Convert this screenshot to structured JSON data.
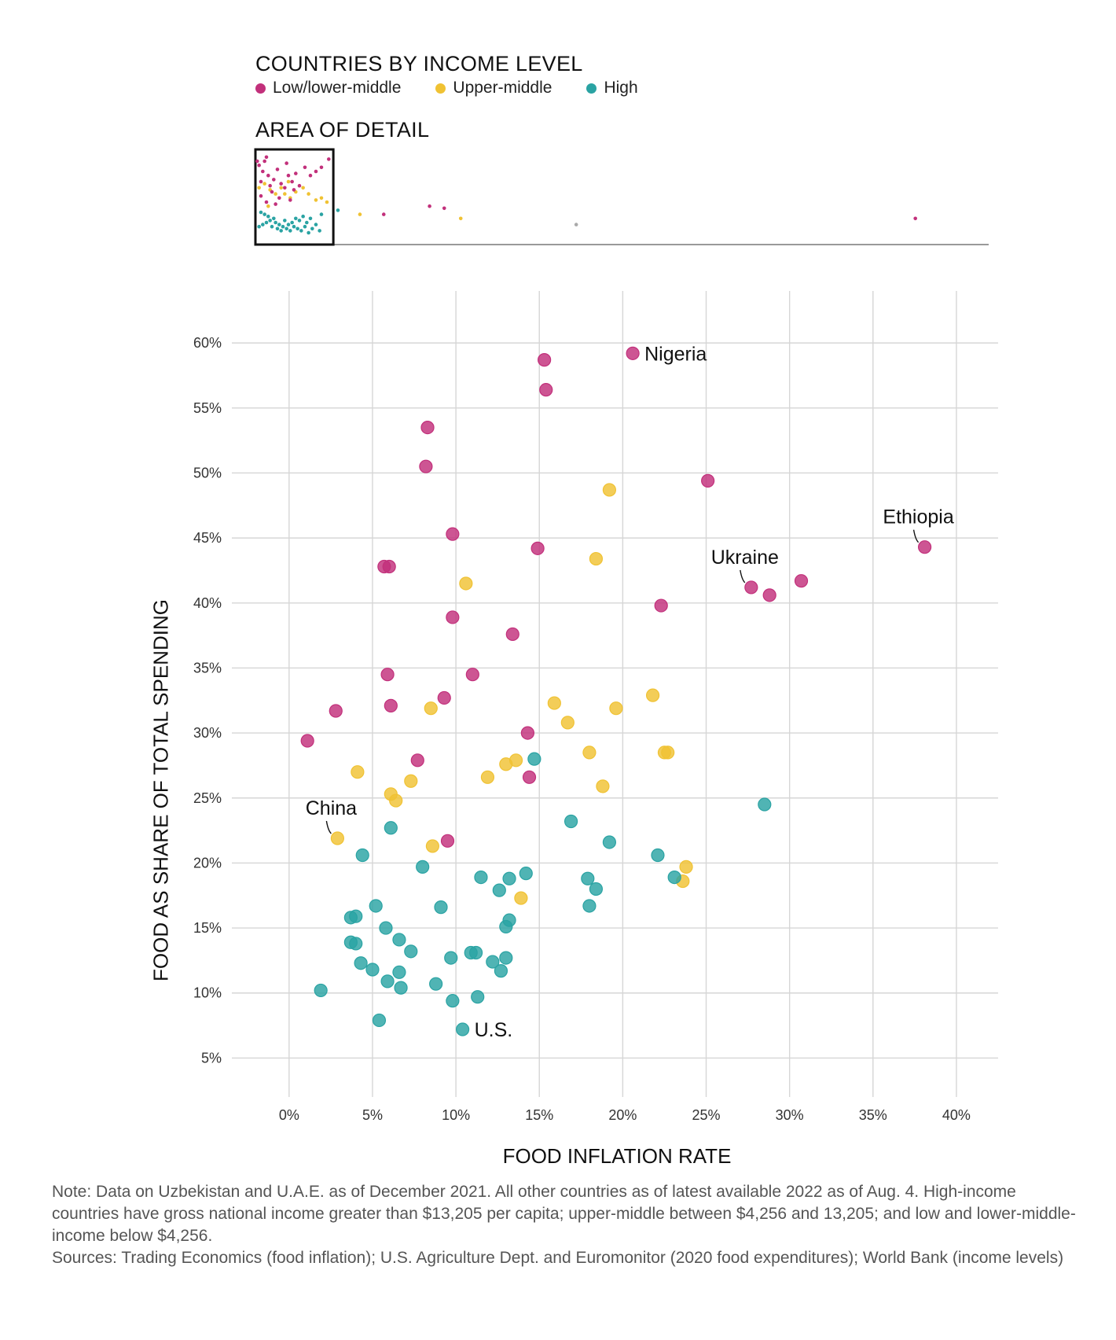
{
  "legend": {
    "title": "COUNTRIES BY INCOME LEVEL",
    "items": [
      {
        "key": "low",
        "label": "Low/lower-middle",
        "color": "#c2307b"
      },
      {
        "key": "upper",
        "label": "Upper-middle",
        "color": "#f0c233"
      },
      {
        "key": "high",
        "label": "High",
        "color": "#2aa3a3"
      }
    ]
  },
  "detail": {
    "title": "AREA OF DETAIL"
  },
  "chart_data": {
    "type": "scatter",
    "xlabel": "FOOD INFLATION RATE",
    "ylabel": "FOOD AS SHARE OF TOTAL SPENDING",
    "xlim": [
      -1.5,
      42.5
    ],
    "ylim": [
      2,
      64
    ],
    "x_ticks": [
      0,
      5,
      10,
      15,
      20,
      25,
      30,
      35,
      40
    ],
    "x_tick_labels": [
      "0%",
      "5%",
      "10%",
      "15%",
      "20%",
      "25%",
      "30%",
      "35%",
      "40%"
    ],
    "y_ticks": [
      5,
      10,
      15,
      20,
      25,
      30,
      35,
      40,
      45,
      50,
      55,
      60
    ],
    "y_tick_labels": [
      "5%",
      "10%",
      "15%",
      "20%",
      "25%",
      "30%",
      "35%",
      "40%",
      "45%",
      "50%",
      "55%",
      "60%"
    ],
    "series": [
      {
        "name": "Low/lower-middle",
        "color": "#c2307b",
        "points": [
          [
            15.3,
            58.7
          ],
          [
            20.6,
            59.2
          ],
          [
            15.4,
            56.4
          ],
          [
            8.3,
            53.5
          ],
          [
            8.2,
            50.5
          ],
          [
            25.1,
            49.4
          ],
          [
            9.8,
            45.3
          ],
          [
            14.9,
            44.2
          ],
          [
            38.1,
            44.3
          ],
          [
            5.7,
            42.8
          ],
          [
            6.0,
            42.8
          ],
          [
            30.7,
            41.7
          ],
          [
            27.7,
            41.2
          ],
          [
            28.8,
            40.6
          ],
          [
            22.3,
            39.8
          ],
          [
            9.8,
            38.9
          ],
          [
            13.4,
            37.6
          ],
          [
            5.9,
            34.5
          ],
          [
            11.0,
            34.5
          ],
          [
            9.3,
            32.7
          ],
          [
            2.8,
            31.7
          ],
          [
            6.1,
            32.1
          ],
          [
            1.1,
            29.4
          ],
          [
            14.3,
            30.0
          ],
          [
            7.7,
            27.9
          ],
          [
            14.4,
            26.6
          ],
          [
            9.5,
            21.7
          ]
        ]
      },
      {
        "name": "Upper-middle",
        "color": "#f0c233",
        "points": [
          [
            19.2,
            48.7
          ],
          [
            18.4,
            43.4
          ],
          [
            10.6,
            41.5
          ],
          [
            21.8,
            32.9
          ],
          [
            15.9,
            32.3
          ],
          [
            8.5,
            31.9
          ],
          [
            19.6,
            31.9
          ],
          [
            16.7,
            30.8
          ],
          [
            4.1,
            27.0
          ],
          [
            13.6,
            27.9
          ],
          [
            13.0,
            27.6
          ],
          [
            18.0,
            28.5
          ],
          [
            22.5,
            28.5
          ],
          [
            22.7,
            28.5
          ],
          [
            11.9,
            26.6
          ],
          [
            7.3,
            26.3
          ],
          [
            18.8,
            25.9
          ],
          [
            6.1,
            25.3
          ],
          [
            6.4,
            24.8
          ],
          [
            2.9,
            21.9
          ],
          [
            8.6,
            21.3
          ],
          [
            23.8,
            19.7
          ],
          [
            23.6,
            18.6
          ],
          [
            13.9,
            17.3
          ]
        ]
      },
      {
        "name": "High",
        "color": "#2aa3a3",
        "points": [
          [
            14.7,
            28.0
          ],
          [
            28.5,
            24.5
          ],
          [
            16.9,
            23.2
          ],
          [
            6.1,
            22.7
          ],
          [
            19.2,
            21.6
          ],
          [
            4.4,
            20.6
          ],
          [
            22.1,
            20.6
          ],
          [
            8.0,
            19.7
          ],
          [
            14.2,
            19.2
          ],
          [
            11.5,
            18.9
          ],
          [
            13.2,
            18.8
          ],
          [
            17.9,
            18.8
          ],
          [
            23.1,
            18.9
          ],
          [
            12.6,
            17.9
          ],
          [
            18.4,
            18.0
          ],
          [
            5.2,
            16.7
          ],
          [
            9.1,
            16.6
          ],
          [
            18.0,
            16.7
          ],
          [
            3.7,
            15.8
          ],
          [
            4.0,
            15.9
          ],
          [
            13.2,
            15.6
          ],
          [
            5.8,
            15.0
          ],
          [
            13.0,
            15.1
          ],
          [
            3.7,
            13.9
          ],
          [
            4.0,
            13.8
          ],
          [
            6.6,
            14.1
          ],
          [
            7.3,
            13.2
          ],
          [
            9.7,
            12.7
          ],
          [
            10.9,
            13.1
          ],
          [
            11.2,
            13.1
          ],
          [
            13.0,
            12.7
          ],
          [
            4.3,
            12.3
          ],
          [
            12.2,
            12.4
          ],
          [
            5.0,
            11.8
          ],
          [
            6.6,
            11.6
          ],
          [
            12.7,
            11.7
          ],
          [
            5.9,
            10.9
          ],
          [
            6.7,
            10.4
          ],
          [
            8.8,
            10.7
          ],
          [
            1.9,
            10.2
          ],
          [
            9.8,
            9.4
          ],
          [
            11.3,
            9.7
          ],
          [
            5.4,
            7.9
          ],
          [
            10.4,
            7.2
          ]
        ]
      }
    ],
    "annotations": [
      {
        "text": "Nigeria",
        "x": 20.6,
        "y": 59.2,
        "placement": "right"
      },
      {
        "text": "Ethiopia",
        "x": 38.1,
        "y": 44.3,
        "placement": "above-left"
      },
      {
        "text": "Ukraine",
        "x": 27.7,
        "y": 41.2,
        "placement": "above-left"
      },
      {
        "text": "China",
        "x": 2.9,
        "y": 21.9,
        "placement": "above-left"
      },
      {
        "text": "U.S.",
        "x": 10.4,
        "y": 7.2,
        "placement": "right"
      }
    ]
  },
  "overview_data": {
    "type": "scatter",
    "xlim": [
      0,
      100
    ],
    "detail_box": {
      "x_max": 42.5
    },
    "low": [
      [
        1,
        40
      ],
      [
        2,
        38
      ],
      [
        4,
        35
      ],
      [
        5,
        40
      ],
      [
        6,
        42
      ],
      [
        3,
        30
      ],
      [
        7,
        33
      ],
      [
        8,
        28
      ],
      [
        10,
        31
      ],
      [
        12,
        36
      ],
      [
        14,
        29
      ],
      [
        16,
        27
      ],
      [
        18,
        33
      ],
      [
        20,
        30
      ],
      [
        21,
        26
      ],
      [
        24,
        28
      ],
      [
        22,
        34
      ],
      [
        27,
        37
      ],
      [
        30,
        33
      ],
      [
        33,
        35
      ],
      [
        36,
        37
      ],
      [
        40,
        41
      ],
      [
        17,
        39
      ],
      [
        9,
        25
      ],
      [
        13,
        22
      ],
      [
        6,
        20
      ],
      [
        3,
        23
      ],
      [
        11,
        19
      ],
      [
        19,
        21
      ],
      [
        95,
        18
      ],
      [
        103,
        17
      ],
      [
        70,
        14
      ]
    ],
    "upper": [
      [
        2,
        27
      ],
      [
        5,
        29
      ],
      [
        8,
        26
      ],
      [
        11,
        24
      ],
      [
        14,
        27
      ],
      [
        16,
        24
      ],
      [
        19,
        22
      ],
      [
        22,
        25
      ],
      [
        26,
        27
      ],
      [
        29,
        24
      ],
      [
        33,
        21
      ],
      [
        36,
        22
      ],
      [
        39,
        20
      ],
      [
        18,
        30
      ],
      [
        7,
        18
      ],
      [
        57,
        14
      ],
      [
        112,
        12
      ]
    ],
    "high": [
      [
        3,
        15
      ],
      [
        5,
        14
      ],
      [
        7,
        13
      ],
      [
        8,
        11
      ],
      [
        10,
        12
      ],
      [
        11,
        10
      ],
      [
        13,
        9
      ],
      [
        15,
        8
      ],
      [
        16,
        11
      ],
      [
        18,
        9
      ],
      [
        20,
        10
      ],
      [
        22,
        12
      ],
      [
        24,
        11
      ],
      [
        26,
        13
      ],
      [
        28,
        10
      ],
      [
        30,
        12
      ],
      [
        33,
        9
      ],
      [
        36,
        14
      ],
      [
        4,
        9
      ],
      [
        6,
        10
      ],
      [
        9,
        8
      ],
      [
        12,
        7
      ],
      [
        14,
        6
      ],
      [
        17,
        7
      ],
      [
        19,
        6
      ],
      [
        21,
        8
      ],
      [
        23,
        7
      ],
      [
        25,
        6
      ],
      [
        27,
        8
      ],
      [
        29,
        5
      ],
      [
        31,
        7
      ],
      [
        35,
        6
      ],
      [
        45,
        16
      ],
      [
        2,
        8
      ]
    ],
    "other": [
      [
        175,
        9
      ]
    ],
    "outlier_low": [
      [
        360,
        12
      ]
    ]
  },
  "note": {
    "line1": "Note: Data on Uzbekistan and U.A.E. as of December 2021. All other countries as of latest available 2022 as of Aug. 4. High-income countries have gross national income greater than $13,205 per capita; upper-middle between $4,256 and 13,205; and low and lower-middle-income below $4,256.",
    "line2": "Sources: Trading Economics (food inflation); U.S. Agriculture Dept. and Euromonitor (2020 food expenditures); World Bank (income levels)"
  }
}
